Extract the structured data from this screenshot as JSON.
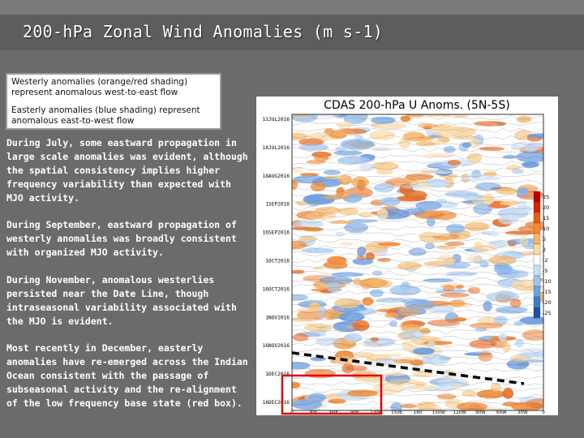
{
  "slide": {
    "title": "200-hPa Zonal Wind Anomalies (m s-1)",
    "legend": {
      "westerly": "Westerly anomalies (orange/red shading) represent anomalous west-to-east flow",
      "easterly": "Easterly anomalies (blue shading) represent anomalous east-to-west flow"
    },
    "paragraphs": [
      "During July, some eastward propagation in large scale anomalies was evident, although the spatial consistency implies higher frequency variability than expected with MJO activity.",
      "During September, eastward propagation of westerly anomalies was broadly consistent with organized MJO activity.",
      "During November, anomalous westerlies persisted near the Date Line, though intraseasonal variability associated with the MJO is evident.",
      "Most recently in December, easterly anomalies have re-emerged across the Indian Ocean consistent with the passage of subseasonal activity and the re-alignment of the low frequency base state (red box)."
    ]
  },
  "chart_data": {
    "type": "heatmap",
    "title": "CDAS 200-hPa U Anoms. (5N-5S)",
    "y_tick_labels": [
      "13JUL2016",
      "18JUL2016",
      "18AUG2016",
      "1SEP2016",
      "16SEP2016",
      "1OCT2016",
      "16OCT2016",
      "1NOV2016",
      "16NOV2016",
      "1DEC2016",
      "16DEC2016"
    ],
    "x_tick_labels": [
      "0",
      "30E",
      "60E",
      "90E",
      "120E",
      "150E",
      "180",
      "150W",
      "120W",
      "90W",
      "60W",
      "30W",
      "0"
    ],
    "colorbar": {
      "labels": [
        "25",
        "20",
        "15",
        "10",
        "5",
        "2",
        "-2",
        "-5",
        "-10",
        "-15",
        "-20",
        "-25"
      ],
      "colors": [
        "#b80000",
        "#e02000",
        "#f05a10",
        "#f48a30",
        "#f8b860",
        "#fadca0",
        "#ffffff",
        "#c8def5",
        "#9ec4ee",
        "#6aa2e2",
        "#3c7cd0",
        "#1c4fa8"
      ]
    },
    "annotations": [
      "dashed line: eastward propagation",
      "red box: recent Indian Ocean easterly anomalies"
    ],
    "accent_colors": {
      "box": "#e00000",
      "dashed_line": "#000000"
    }
  }
}
